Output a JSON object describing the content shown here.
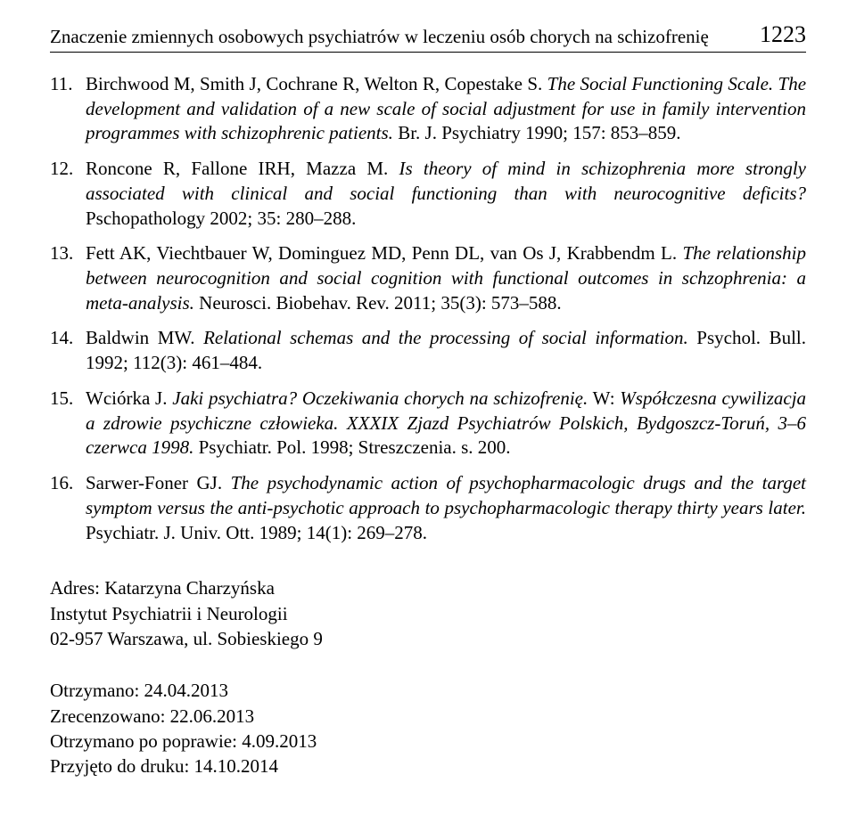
{
  "header": {
    "running_title": "Znaczenie zmiennych osobowych psychiatrów w leczeniu osób chorych na schizofrenię",
    "page_number": "1223"
  },
  "references": [
    {
      "authors": "Birchwood M, Smith J, Cochrane R, Welton R, Copestake S.",
      "title": "The Social Functioning Scale. The development and validation of a new scale of social adjustment for use in family intervention programmes with schizophrenic patients.",
      "journal": " Br. J. Psychiatry 1990; 157: 853–859."
    },
    {
      "authors": "Roncone R, Fallone IRH, Mazza M.",
      "title": "Is theory of mind in schizophrenia more strongly associated with clinical and social functioning than with neurocognitive deficits?",
      "journal": " Pschopathology 2002; 35: 280–288."
    },
    {
      "authors": "Fett AK, Viechtbauer W, Dominguez MD, Penn DL, van Os J, Krabbendm L.",
      "title": "The relationship between neurocognition and social cognition with functional outcomes in schzophrenia: a meta­‑analysis.",
      "journal": " Neurosci. Biobehav. Rev. 2011; 35(3): 573–588."
    },
    {
      "authors": "Baldwin MW.",
      "title": "Relational schemas and the processing of social information.",
      "journal": " Psychol. Bull. 1992; 112(3): 461–484."
    },
    {
      "authors": "Wciórka J.",
      "title": "Jaki psychiatra? Oczekiwania chorych na schizofrenię.",
      "extra_pre": " W: ",
      "title2": "Współczesna cywilizacja a zdrowie psychiczne człowieka. XXXIX Zjazd Psychiatrów Polskich, Bydgoszcz-Toruń, 3–6 czerwca 1998.",
      "journal": " Psychiatr. Pol. 1998; Streszczenia. s. 200."
    },
    {
      "authors": "Sarwer-Foner GJ.",
      "title": "The psychodynamic action of psychopharmacologic drugs and the target symptom versus the anti-psychotic approach to psychopharmacologic therapy thirty years later.",
      "journal": " Psychiatr. J. Univ. Ott. 1989; 14(1): 269–278."
    }
  ],
  "address": {
    "line1": "Adres: Katarzyna Charzyńska",
    "line2": "Instytut Psychiatrii i Neurologii",
    "line3": "02-957 Warszawa, ul. Sobieskiego 9"
  },
  "dates": {
    "received": "Otrzymano: 24.04.2013",
    "reviewed": "Zrecenzowano: 22.06.2013",
    "revised": "Otrzymano po poprawie: 4.09.2013",
    "accepted": "Przyjęto do druku: 14.10.2014"
  }
}
